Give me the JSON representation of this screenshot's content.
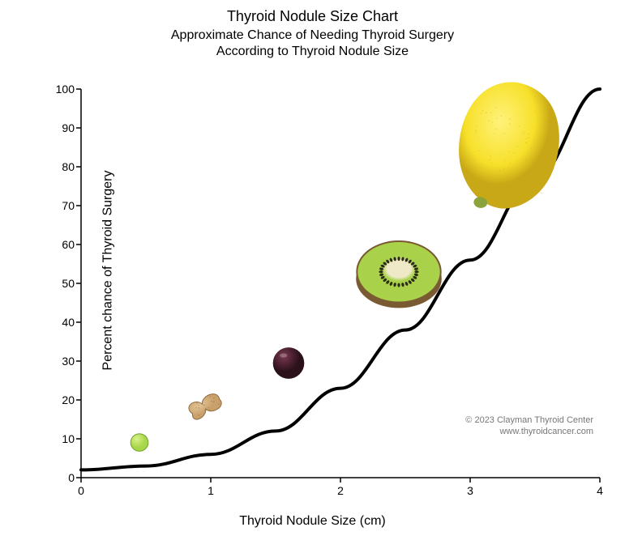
{
  "chart": {
    "type": "line-infographic",
    "title": "Thyroid Nodule Size Chart",
    "subtitle_line1": "Approximate Chance of Needing Thyroid Surgery",
    "subtitle_line2": "According to Thyroid Nodule Size",
    "xlabel": "Thyroid Nodule Size (cm)",
    "ylabel": "Percent chance of Thyroid Surgery",
    "xlim": [
      0,
      4
    ],
    "ylim": [
      0,
      100
    ],
    "xtick_step": 1,
    "ytick_step": 10,
    "xticks": [
      0,
      1,
      2,
      3,
      4
    ],
    "yticks": [
      0,
      10,
      20,
      30,
      40,
      50,
      60,
      70,
      80,
      90,
      100
    ],
    "title_fontsize": 18,
    "subtitle_fontsize": 16,
    "label_fontsize": 16,
    "tick_fontsize": 14,
    "background_color": "#ffffff",
    "axis_color": "#000000",
    "line_color": "#000000",
    "line_width": 4,
    "credit_color": "#777777",
    "credit_line1": "© 2023 Clayman Thyroid Center",
    "credit_line2": "www.thyroidcancer.com",
    "curve_points": [
      {
        "x": 0.0,
        "y": 2
      },
      {
        "x": 0.5,
        "y": 3
      },
      {
        "x": 1.0,
        "y": 6
      },
      {
        "x": 1.5,
        "y": 12
      },
      {
        "x": 2.0,
        "y": 23
      },
      {
        "x": 2.5,
        "y": 38
      },
      {
        "x": 3.0,
        "y": 56
      },
      {
        "x": 3.5,
        "y": 77
      },
      {
        "x": 4.0,
        "y": 100
      }
    ],
    "markers": [
      {
        "name": "pea",
        "x": 0.45,
        "y": 8.5,
        "size": 24,
        "colors": {
          "fill": "#a8d64a",
          "hi": "#d8f28a",
          "lo": "#6fa22a"
        }
      },
      {
        "name": "peanut",
        "x": 0.95,
        "y": 18,
        "size": 54,
        "colors": {
          "fill": "#c9a06a",
          "hi": "#e4c79a",
          "lo": "#8f6b3d"
        }
      },
      {
        "name": "grape",
        "x": 1.6,
        "y": 29,
        "size": 42,
        "colors": {
          "fill": "#4a1f2f",
          "hi": "#7a3a50",
          "lo": "#2a111a"
        }
      },
      {
        "name": "kiwi",
        "x": 2.45,
        "y": 52,
        "size": 110,
        "colors": {
          "flesh": "#a9d24a",
          "core": "#efe9c8",
          "seed": "#2b2b18",
          "skin": "#7a5a33"
        }
      },
      {
        "name": "lemon",
        "x": 3.3,
        "y": 85,
        "size": 170,
        "colors": {
          "fill": "#f7e02a",
          "hi": "#fff27a",
          "lo": "#c8a816",
          "tip": "#8aa33a"
        }
      }
    ]
  }
}
